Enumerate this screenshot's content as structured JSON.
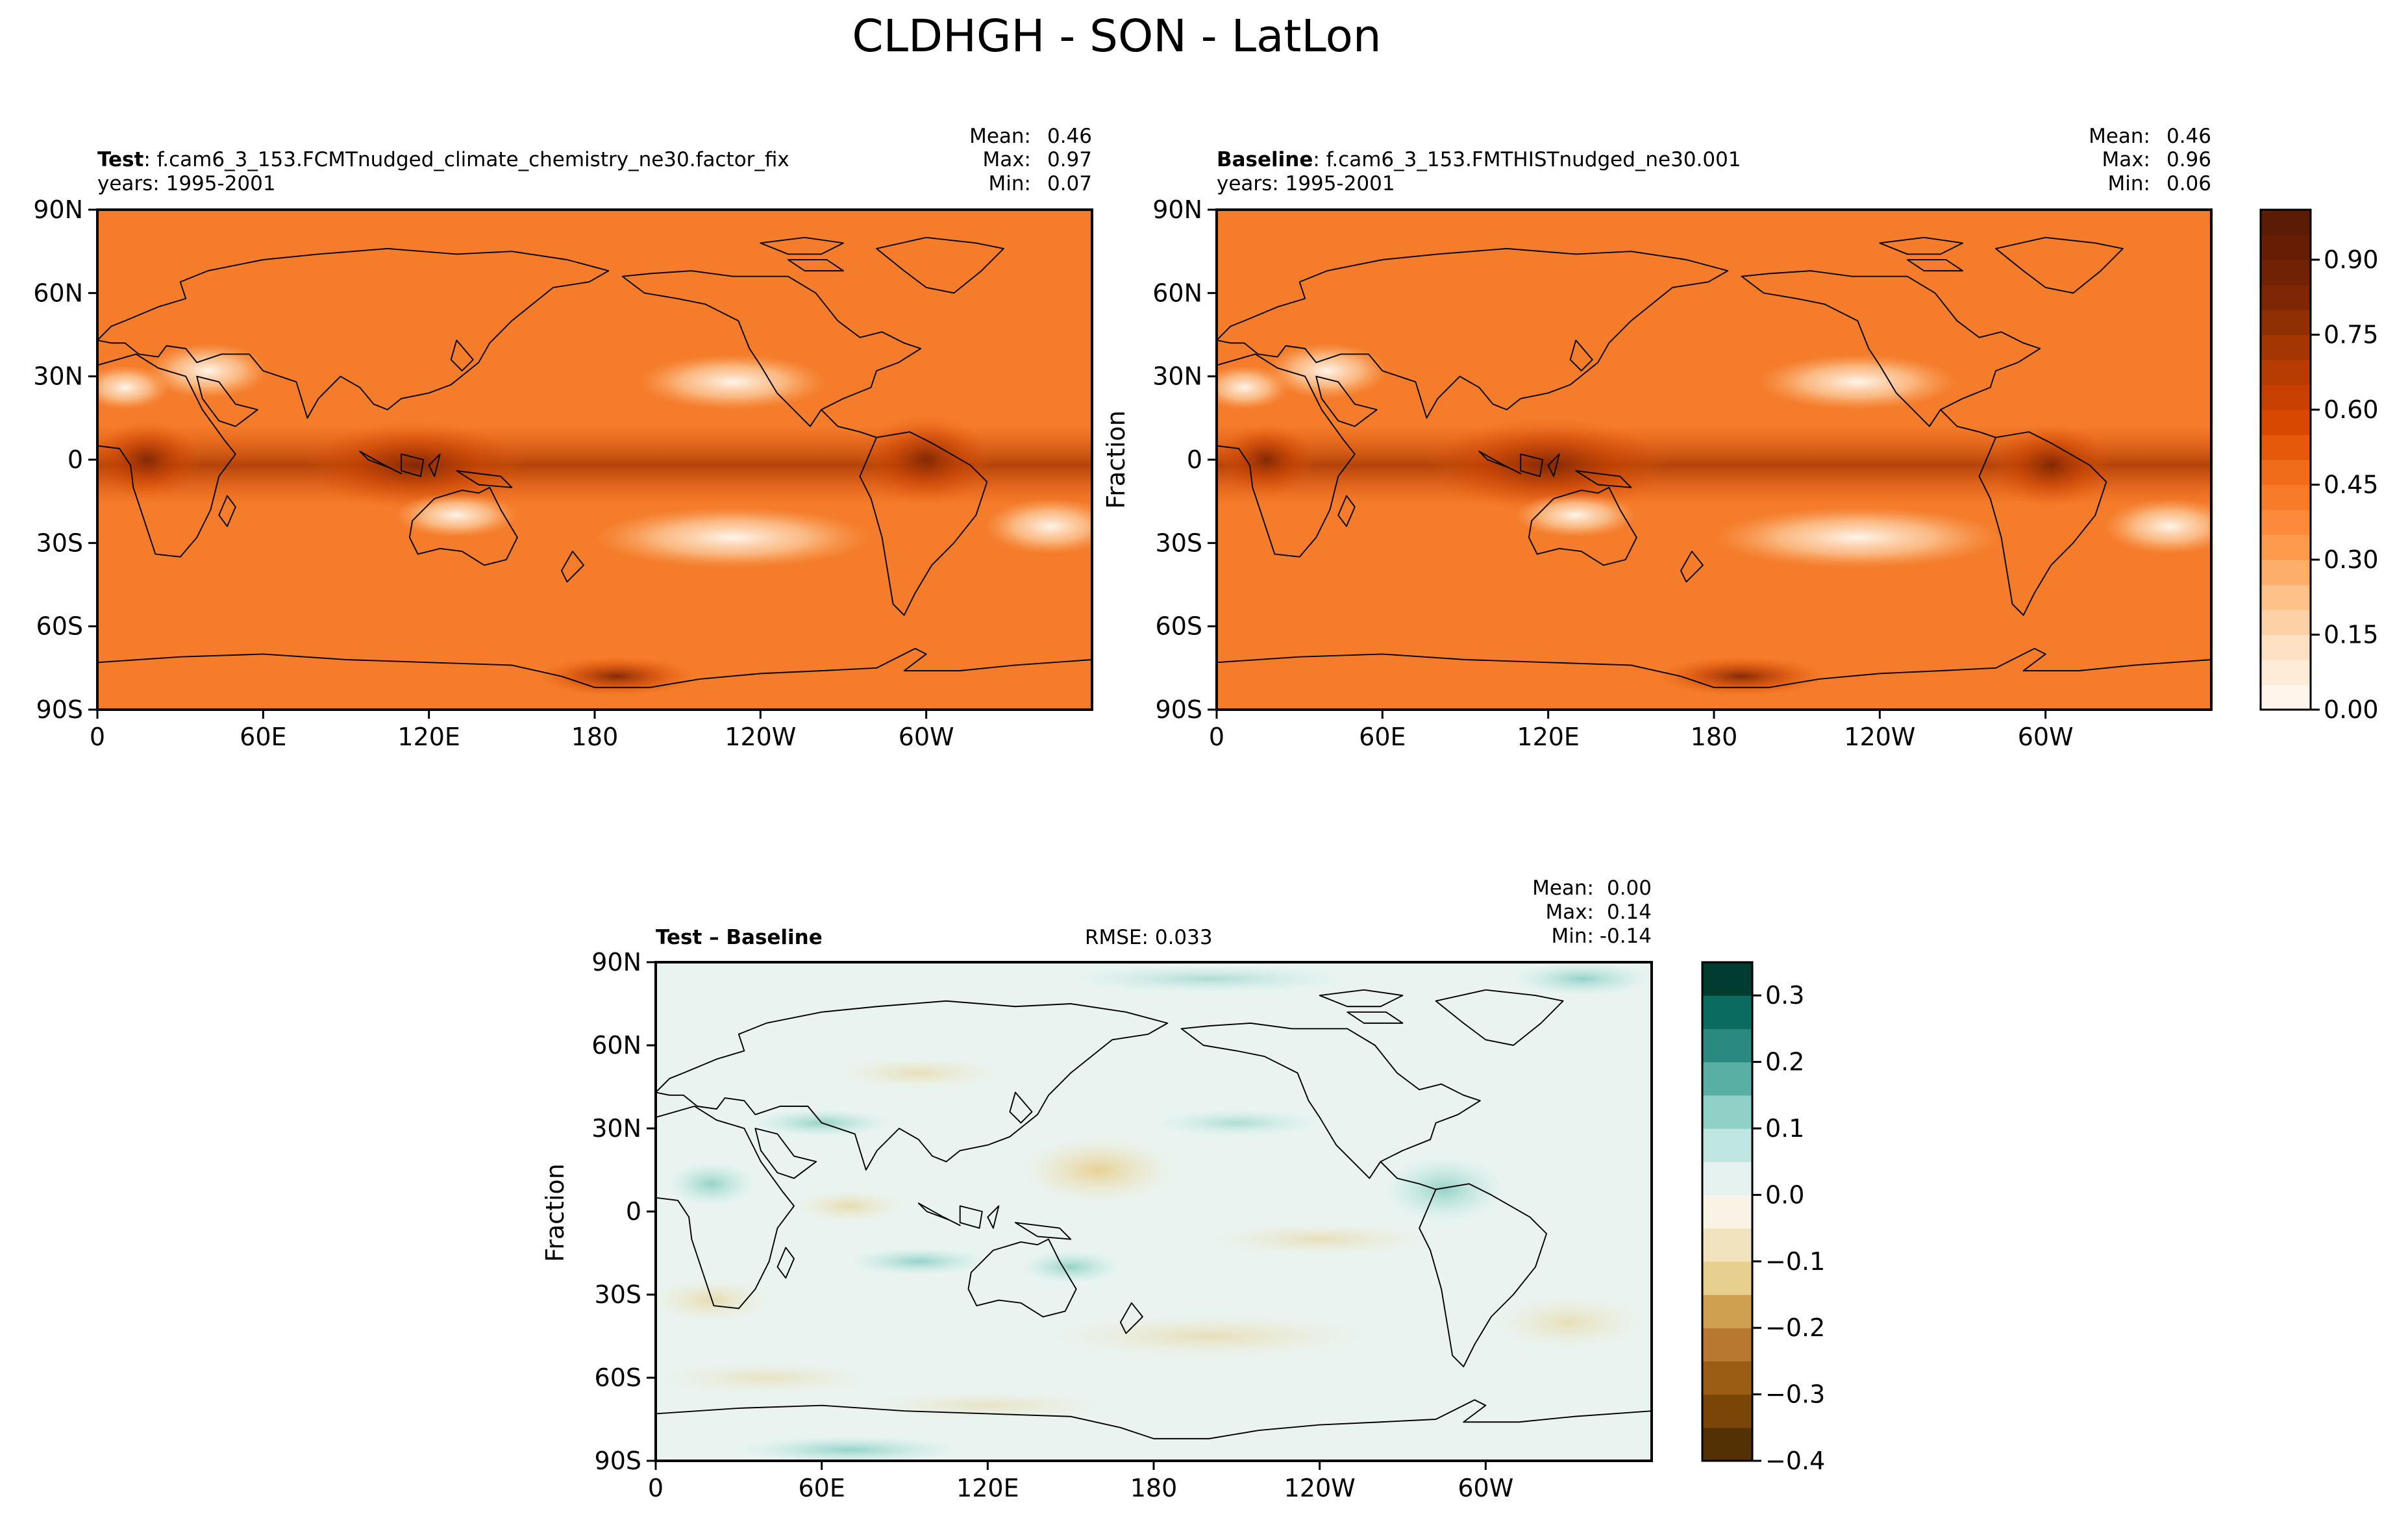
{
  "figure": {
    "title": "CLDHGH - SON - LatLon",
    "colors": {
      "frame": "#000000",
      "coast": "#000000",
      "background": "#ffffff"
    }
  },
  "chart_data": [
    {
      "type": "heatmap",
      "role": "test",
      "name_bold": "Test",
      "name_rest": ": f.cam6_3_153.FCMTnudged_climate_chemistry_ne30.factor_fix",
      "years": "years: 1995-2001",
      "stats": {
        "mean": "0.46",
        "max": "0.97",
        "min": "0.07"
      },
      "stats_labels": {
        "mean": "Mean:",
        "max": "Max:",
        "min": "Min:"
      },
      "ylabel": "",
      "xticks": [
        "0",
        "60E",
        "120E",
        "180",
        "120W",
        "60W"
      ],
      "yticks": [
        "90N",
        "60N",
        "30N",
        "0",
        "30S",
        "60S",
        "90S"
      ],
      "xlim": [
        0,
        360
      ],
      "ylim": [
        -90,
        90
      ],
      "colormap": "Oranges",
      "field": "cloud fraction (CLDHGH)"
    },
    {
      "type": "heatmap",
      "role": "baseline",
      "name_bold": "Baseline",
      "name_rest": ": f.cam6_3_153.FMTHISTnudged_ne30.001",
      "years": "years: 1995-2001",
      "stats": {
        "mean": "0.46",
        "max": "0.96",
        "min": "0.06"
      },
      "stats_labels": {
        "mean": "Mean:",
        "max": "Max:",
        "min": "Min:"
      },
      "ylabel": "Fraction",
      "xticks": [
        "0",
        "60E",
        "120E",
        "180",
        "120W",
        "60W"
      ],
      "yticks": [
        "90N",
        "60N",
        "30N",
        "0",
        "30S",
        "60S",
        "90S"
      ],
      "xlim": [
        0,
        360
      ],
      "ylim": [
        -90,
        90
      ],
      "colormap": "Oranges",
      "colorbar": {
        "ticks": [
          "0.00",
          "0.15",
          "0.30",
          "0.45",
          "0.60",
          "0.75",
          "0.90"
        ],
        "range": [
          0.0,
          1.0
        ],
        "levels": 20,
        "colors_low_to_high": [
          "#fff5eb",
          "#feebd8",
          "#fee1c4",
          "#fdd1a5",
          "#fdc189",
          "#fdae6b",
          "#fd9a4e",
          "#fd8a3a",
          "#f87b2a",
          "#f06c1a",
          "#e5590a",
          "#d94801",
          "#c84102",
          "#b63c02",
          "#a33603",
          "#8f3004",
          "#7f2704",
          "#722204",
          "#661d04",
          "#5c1b04"
        ]
      }
    },
    {
      "type": "heatmap",
      "role": "difference",
      "name_bold": "Test – Baseline",
      "rmse": "RMSE: 0.033",
      "stats": {
        "mean": "0.00",
        "max": "0.14",
        "min": "-0.14"
      },
      "stats_labels": {
        "mean": "Mean:",
        "max": "Max:",
        "min": "Min:"
      },
      "ylabel": "Fraction",
      "xticks": [
        "0",
        "60E",
        "120E",
        "180",
        "120W",
        "60W"
      ],
      "yticks": [
        "90N",
        "60N",
        "30N",
        "0",
        "30S",
        "60S",
        "90S"
      ],
      "xlim": [
        0,
        360
      ],
      "ylim": [
        -90,
        90
      ],
      "colormap": "BrBG",
      "colorbar": {
        "ticks": [
          "0.3",
          "0.2",
          "0.1",
          "0.0",
          "−0.1",
          "−0.2",
          "−0.3",
          "−0.4"
        ],
        "range": [
          -0.4,
          0.35
        ],
        "levels": 15,
        "colors_low_to_high": [
          "#543005",
          "#7a4607",
          "#9b5d13",
          "#b9782f",
          "#cfa050",
          "#e6cf8f",
          "#f0e3bd",
          "#f8f3e5",
          "#e6f2f0",
          "#c0e6e1",
          "#8fd1c6",
          "#5aafa5",
          "#2a8a82",
          "#0a6b60",
          "#003c30"
        ]
      }
    }
  ]
}
